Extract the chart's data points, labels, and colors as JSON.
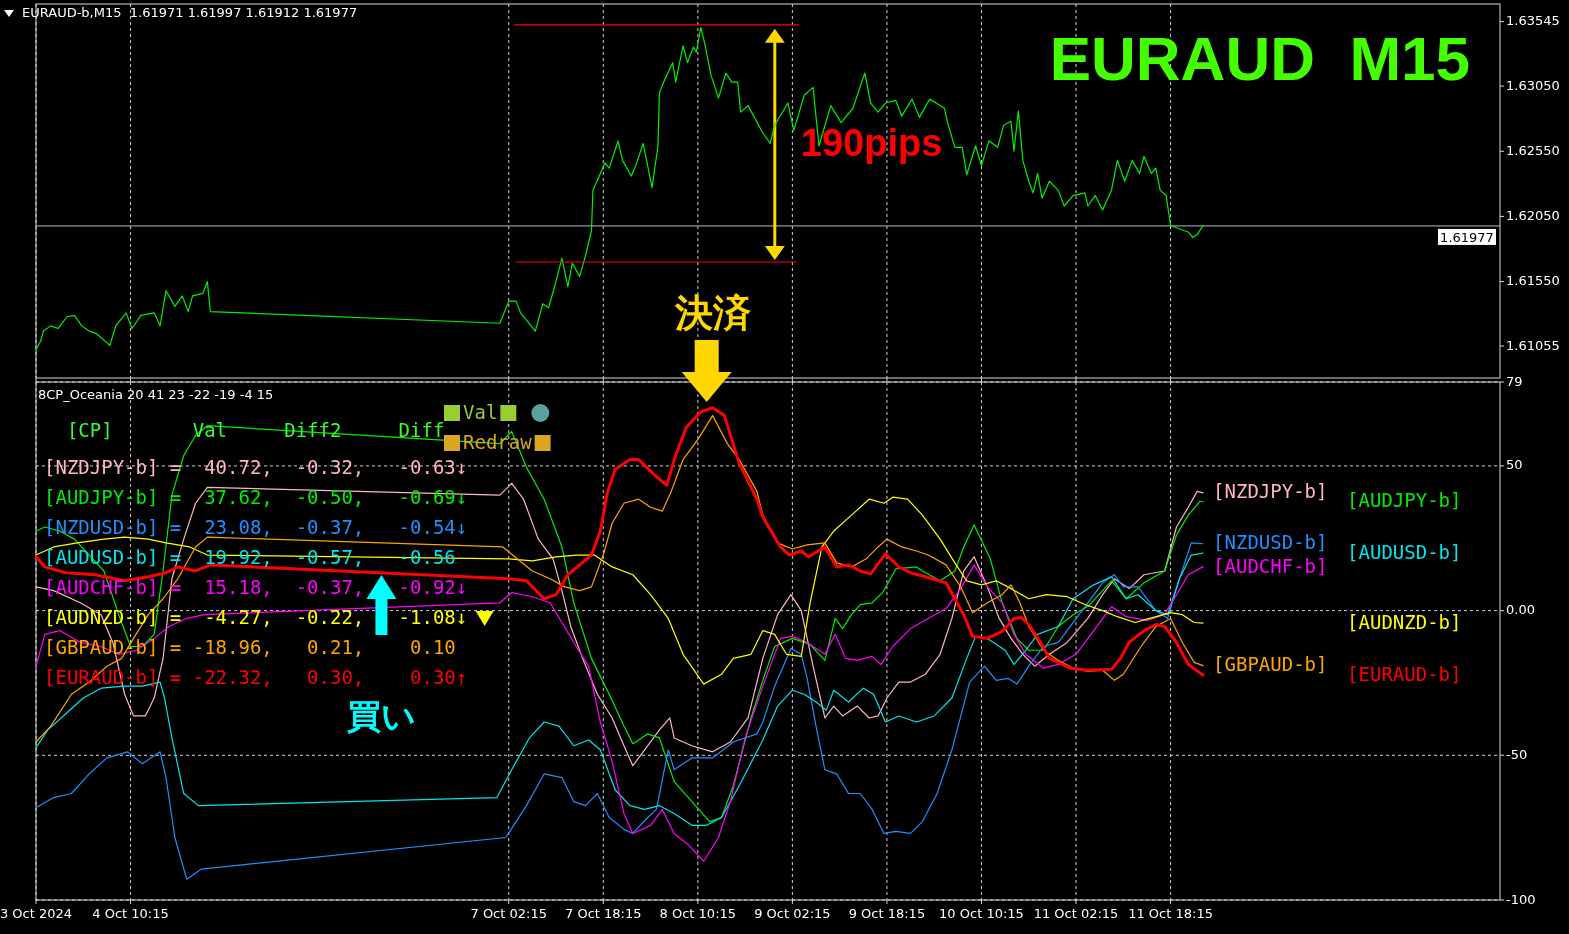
{
  "chart_data": [
    {
      "type": "line",
      "title": "EURAUD  M15",
      "subtitle": "EURAUD-b,M15  1.61971 1.61997 1.61912 1.61977",
      "xlim": [
        "2024-10-03T18:15",
        "2024-10-14T02:00"
      ],
      "xticks": [
        {
          "value": "2024-10-03T18:15",
          "label": null
        },
        {
          "value": "2024-10-04T10:15",
          "label": null
        },
        {
          "value": "2024-10-07T02:15",
          "label": null
        },
        {
          "value": "2024-10-07T18:15",
          "label": null
        },
        {
          "value": "2024-10-08T10:15",
          "label": null
        },
        {
          "value": "2024-10-09T02:15",
          "label": null
        },
        {
          "value": "2024-10-09T18:15",
          "label": null
        },
        {
          "value": "2024-10-10T10:15",
          "label": null
        },
        {
          "value": "2024-10-11T02:15",
          "label": null
        },
        {
          "value": "2024-10-11T18:15",
          "label": null
        }
      ],
      "ylim": [
        1.6081,
        1.6368
      ],
      "yticks": [
        1.61055,
        {
          "value": 1.6155,
          "label": "1.61550"
        },
        {
          "value": 1.6205,
          "label": "1.62050"
        },
        {
          "value": 1.6255,
          "label": "1.62550"
        },
        {
          "value": 1.6305,
          "label": "1.63050"
        },
        1.63545
      ],
      "tick_labels": "y",
      "grid": "x",
      "line_style": "solid",
      "ref_lines": [
        {
          "axis": "y",
          "value": 1.61977,
          "label": "1.61977",
          "color": "#b0b8c8"
        }
      ],
      "annotations": [
        "190pips"
      ],
      "series": [
        {
          "color": "#00ee00",
          "x": [
            "2024-10-03T18:15",
            "2024-10-03T19:00",
            "2024-10-03T19:30",
            "2024-10-03T20:45",
            "2024-10-03T22:00",
            "2024-10-03T23:30",
            "2024-10-04T00:45",
            "2024-10-04T02:00",
            "2024-10-04T03:15",
            "2024-10-04T04:30",
            "2024-10-04T06:45",
            "2024-10-04T07:45",
            "2024-10-04T09:30",
            "2024-10-04T10:30",
            "2024-10-04T12:00",
            "2024-10-04T14:15",
            "2024-10-04T15:15",
            "2024-10-04T16:15",
            "2024-10-04T17:45",
            "2024-10-04T19:00",
            "2024-10-04T20:00",
            "2024-10-04T20:45",
            "2024-10-04T22:30",
            "2024-10-04T23:15",
            "2024-10-04T23:45",
            "2024-10-07T00:45",
            "2024-10-07T02:15",
            "2024-10-07T03:30",
            "2024-10-07T04:15",
            "2024-10-07T06:45",
            "2024-10-07T08:00",
            "2024-10-07T09:00",
            "2024-10-07T10:00",
            "2024-10-07T11:15",
            "2024-10-07T12:15",
            "2024-10-07T13:00",
            "2024-10-07T14:15",
            "2024-10-07T15:15",
            "2024-10-07T16:15",
            "2024-10-07T16:30",
            "2024-10-07T17:45",
            "2024-10-07T18:30",
            "2024-10-07T19:15",
            "2024-10-07T20:45",
            "2024-10-07T21:30",
            "2024-10-07T23:00",
            "2024-10-07T23:45",
            "2024-10-08T01:00",
            "2024-10-08T02:30",
            "2024-10-08T03:30",
            "2024-10-08T03:45",
            "2024-10-08T04:45",
            "2024-10-08T06:00",
            "2024-10-08T06:30",
            "2024-10-08T07:45",
            "2024-10-08T08:30",
            "2024-10-08T09:30",
            "2024-10-08T10:00",
            "2024-10-08T10:45",
            "2024-10-08T11:30",
            "2024-10-08T12:30",
            "2024-10-08T13:45",
            "2024-10-08T15:00",
            "2024-10-08T16:00",
            "2024-10-08T17:00",
            "2024-10-08T17:30",
            "2024-10-08T18:45",
            "2024-10-08T21:15",
            "2024-10-08T22:30",
            "2024-10-08T23:15",
            "2024-10-09T01:30",
            "2024-10-09T02:30",
            "2024-10-09T04:15",
            "2024-10-09T05:45",
            "2024-10-09T06:45",
            "2024-10-09T08:45",
            "2024-10-09T10:30",
            "2024-10-09T12:30",
            "2024-10-09T14:30",
            "2024-10-09T15:30",
            "2024-10-09T16:45",
            "2024-10-09T18:00",
            "2024-10-09T19:45",
            "2024-10-09T20:45",
            "2024-10-09T22:30",
            "2024-10-09T23:45",
            "2024-10-10T01:30",
            "2024-10-10T04:00",
            "2024-10-10T04:30",
            "2024-10-10T05:45",
            "2024-10-10T07:00",
            "2024-10-10T07:45",
            "2024-10-10T09:15",
            "2024-10-10T10:15",
            "2024-10-10T11:30",
            "2024-10-10T13:00",
            "2024-10-10T14:00",
            "2024-10-10T15:15",
            "2024-10-10T15:45",
            "2024-10-10T16:30",
            "2024-10-10T17:15",
            "2024-10-10T18:15",
            "2024-10-10T19:00",
            "2024-10-10T19:45",
            "2024-10-10T20:30",
            "2024-10-10T21:45",
            "2024-10-10T23:15",
            "2024-10-11T00:15",
            "2024-10-11T01:45",
            "2024-10-11T03:45",
            "2024-10-11T04:15",
            "2024-10-11T05:30",
            "2024-10-11T06:45",
            "2024-10-11T08:15",
            "2024-10-11T09:15",
            "2024-10-11T10:30",
            "2024-10-11T11:45",
            "2024-10-11T13:00",
            "2024-10-11T13:45",
            "2024-10-11T15:00",
            "2024-10-11T15:45",
            "2024-10-11T16:30",
            "2024-10-11T17:30",
            "2024-10-11T18:15",
            "2024-10-11T20:00",
            "2024-10-11T21:15",
            "2024-10-11T22:00",
            "2024-10-11T22:45",
            "2024-10-11T23:45"
          ],
          "values": [
            1.6103,
            1.6109,
            1.6117,
            1.6121,
            1.6119,
            1.6128,
            1.6129,
            1.6121,
            1.6117,
            1.6115,
            1.6106,
            1.6121,
            1.6131,
            1.6119,
            1.6129,
            1.6131,
            1.6121,
            1.6148,
            1.6136,
            1.6144,
            1.6132,
            1.6144,
            1.6146,
            1.6155,
            1.6132,
            1.6123,
            1.614,
            1.614,
            1.6131,
            1.6117,
            1.6138,
            1.6135,
            1.6151,
            1.6173,
            1.6151,
            1.6169,
            1.6159,
            1.6175,
            1.6194,
            1.6225,
            1.6238,
            1.6246,
            1.6242,
            1.6263,
            1.6248,
            1.6236,
            1.6244,
            1.6261,
            1.6227,
            1.6259,
            1.63,
            1.6311,
            1.6323,
            1.6308,
            1.6336,
            1.6323,
            1.6335,
            1.6331,
            1.635,
            1.6336,
            1.6313,
            1.6296,
            1.6315,
            1.6308,
            1.6308,
            1.6285,
            1.629,
            1.6269,
            1.6261,
            1.6275,
            1.6292,
            1.6271,
            1.6298,
            1.6304,
            1.6259,
            1.629,
            1.6277,
            1.6288,
            1.6315,
            1.6292,
            1.6285,
            1.6292,
            1.6294,
            1.6282,
            1.6295,
            1.6281,
            1.6295,
            1.6288,
            1.6277,
            1.6258,
            1.6258,
            1.6237,
            1.6259,
            1.6244,
            1.6263,
            1.6258,
            1.6275,
            1.6278,
            1.6255,
            1.6286,
            1.6248,
            1.6232,
            1.6223,
            1.6238,
            1.6219,
            1.6232,
            1.6225,
            1.6213,
            1.6221,
            1.6223,
            1.6213,
            1.6221,
            1.621,
            1.6225,
            1.6248,
            1.6232,
            1.6248,
            1.6238,
            1.6251,
            1.6238,
            1.6242,
            1.6225,
            1.6221,
            1.6198,
            1.6195,
            1.6193,
            1.6189,
            1.6191,
            1.6198
          ]
        },
        {
          "color": "#ff0000",
          "x": [
            "2024-10-07T03:15",
            "2024-10-09T03:15"
          ],
          "values": [
            1.6352,
            1.6352
          ]
        },
        {
          "color": "#ff0000",
          "x": [
            "2024-10-07T03:30",
            "2024-10-09T03:00"
          ],
          "values": [
            1.617,
            1.617
          ]
        }
      ]
    },
    {
      "type": "line",
      "title": "8CP_Oceania 20 41 23 -22 -19 -4 15",
      "xlim": [
        "2024-10-03T18:15",
        "2024-10-14T02:00"
      ],
      "xticks": [
        {
          "value": "2024-10-03T18:15",
          "label": "3 Oct 2024"
        },
        {
          "value": "2024-10-04T10:15",
          "label": "4 Oct 10:15"
        },
        {
          "value": "2024-10-07T02:15",
          "label": "7 Oct 02:15"
        },
        {
          "value": "2024-10-07T18:15",
          "label": "7 Oct 18:15"
        },
        {
          "value": "2024-10-08T10:15",
          "label": "8 Oct 10:15"
        },
        {
          "value": "2024-10-09T02:15",
          "label": "9 Oct 02:15"
        },
        {
          "value": "2024-10-09T18:15",
          "label": "9 Oct 18:15"
        },
        {
          "value": "2024-10-10T10:15",
          "label": "10 Oct 10:15"
        },
        {
          "value": "2024-10-11T02:15",
          "label": "11 Oct 02:15"
        },
        {
          "value": "2024-10-11T18:15",
          "label": "11 Oct 18:15"
        }
      ],
      "ylim": [
        -100,
        79
      ],
      "yticks": [
        79,
        50,
        {
          "value": 0,
          "label": "0.00"
        },
        -50,
        -100
      ],
      "grid": true,
      "line_style": "solid",
      "annotations": [
        "  [CP]       Val     Diff2     Diff",
        "[NZDJPY-b] =  40.72,  -0.32,   -0.63↓",
        "[AUDJPY-b] =  37.62,  -0.50,   -0.69↓",
        "[NZDUSD-b] =  23.08,  -0.37,   -0.54↓",
        "[AUDUSD-b] =  19.92,  -0.57,   -0.56",
        "[AUDCHF-b] =  15.18,  -0.37,   -0.92↓",
        "[AUDNZD-b] =  -4.27,  -0.22,   -1.08↓",
        "[GBPAUD-b] = -18.96,   0.21,    0.10",
        "[EURAUD-b] = -22.32,   0.30,    0.30↑",
        "Val",
        "Redraw",
        "買い",
        {
          "text": "決済",
          "x": "2024-10-08T11:45",
          "y": 70
        }
      ],
      "series": [
        {
          "name": "[NZDJPY-b]",
          "color": "#ffb6c1",
          "x": [
            "2024-10-03T18:15",
            "2024-10-03T21:15",
            "2024-10-04T01:45",
            "2024-10-04T05:15",
            "2024-10-04T07:15",
            "2024-10-04T09:15",
            "2024-10-04T10:45",
            "2024-10-04T12:45",
            "2024-10-04T14:15",
            "2024-10-04T15:45",
            "2024-10-04T17:15",
            "2024-10-04T19:15",
            "2024-10-04T21:15",
            "2024-10-04T23:15",
            "2024-10-07T00:45",
            "2024-10-07T02:45",
            "2024-10-07T04:45",
            "2024-10-07T07:15",
            "2024-10-07T09:45",
            "2024-10-07T11:15",
            "2024-10-07T12:45",
            "2024-10-07T14:45",
            "2024-10-07T17:15",
            "2024-10-07T19:45",
            "2024-10-07T21:45",
            "2024-10-07T23:15",
            "2024-10-08T01:15",
            "2024-10-08T03:45",
            "2024-10-08T05:30",
            "2024-10-08T06:15",
            "2024-10-08T09:15",
            "2024-10-08T12:45",
            "2024-10-08T15:45",
            "2024-10-08T18:45",
            "2024-10-08T21:15",
            "2024-10-08T23:45",
            "2024-10-09T02:00",
            "2024-10-09T03:45",
            "2024-10-09T05:45",
            "2024-10-09T07:45",
            "2024-10-09T09:15",
            "2024-10-09T10:45",
            "2024-10-09T13:15",
            "2024-10-09T15:15",
            "2024-10-09T16:45",
            "2024-10-09T18:15",
            "2024-10-09T20:15",
            "2024-10-09T22:15",
            "2024-10-10T00:45",
            "2024-10-10T03:15",
            "2024-10-10T05:15",
            "2024-10-10T07:15",
            "2024-10-10T09:00",
            "2024-10-10T11:15",
            "2024-10-10T13:15",
            "2024-10-10T15:15",
            "2024-10-10T17:15",
            "2024-10-10T19:15",
            "2024-10-10T21:45",
            "2024-10-11T00:45",
            "2024-10-11T04:15",
            "2024-10-11T06:45",
            "2024-10-11T08:45",
            "2024-10-11T11:15",
            "2024-10-11T13:45",
            "2024-10-11T17:15",
            "2024-10-11T19:15",
            "2024-10-11T21:15",
            "2024-10-11T22:45",
            "2024-10-11T23:45"
          ],
          "values": [
            8.2,
            6.9,
            2.7,
            -1.4,
            -11.0,
            -28.9,
            -36.4,
            -36.4,
            -30.2,
            -16.5,
            11.0,
            24.7,
            37.1,
            42.6,
            39.9,
            44.0,
            38.5,
            24.7,
            17.9,
            6.9,
            -5.5,
            -16.5,
            -28.9,
            -37.1,
            -46.7,
            -53.6,
            -48.1,
            -41.2,
            -37.1,
            -44.0,
            -46.7,
            -48.8,
            -45.4,
            -37.1,
            -16.5,
            -1.4,
            5.5,
            0.0,
            -19.2,
            -37.1,
            -33.0,
            -36.4,
            -33.0,
            -37.1,
            -36.4,
            -30.2,
            -24.7,
            -24.7,
            -22.0,
            -15.1,
            -2.7,
            13.7,
            18.6,
            8.2,
            -2.7,
            -9.6,
            -15.1,
            -19.2,
            -15.1,
            -11.0,
            -2.7,
            5.5,
            11.0,
            7.6,
            12.4,
            13.7,
            28.9,
            35.7,
            41.2,
            40.7
          ]
        },
        {
          "name": "[AUDJPY-b]",
          "color": "#00ee00",
          "x": [
            "2024-10-03T18:15",
            "2024-10-03T19:45",
            "2024-10-03T22:15",
            "2024-10-04T00:45",
            "2024-10-04T03:15",
            "2024-10-04T05:45",
            "2024-10-04T08:15",
            "2024-10-04T10:15",
            "2024-10-04T12:15",
            "2024-10-04T14:15",
            "2024-10-04T15:45",
            "2024-10-04T17:15",
            "2024-10-04T19:15",
            "2024-10-04T21:15",
            "2024-10-04T23:15",
            "2024-10-07T00:45",
            "2024-10-07T02:45",
            "2024-10-07T05:15",
            "2024-10-07T08:15",
            "2024-10-07T11:15",
            "2024-10-07T13:15",
            "2024-10-07T16:15",
            "2024-10-07T19:15",
            "2024-10-07T21:45",
            "2024-10-07T23:15",
            "2024-10-08T01:45",
            "2024-10-08T03:45",
            "2024-10-08T06:15",
            "2024-10-08T09:15",
            "2024-10-08T12:15",
            "2024-10-08T14:15",
            "2024-10-08T16:15",
            "2024-10-08T19:15",
            "2024-10-08T21:15",
            "2024-10-08T23:15",
            "2024-10-09T02:15",
            "2024-10-09T05:15",
            "2024-10-09T07:45",
            "2024-10-09T09:30",
            "2024-10-09T10:45",
            "2024-10-09T12:15",
            "2024-10-09T13:45",
            "2024-10-09T15:45",
            "2024-10-09T17:30",
            "2024-10-09T19:45",
            "2024-10-09T23:15",
            "2024-10-10T00:15",
            "2024-10-10T03:15",
            "2024-10-10T05:45",
            "2024-10-10T07:15",
            "2024-10-10T09:00",
            "2024-10-10T11:45",
            "2024-10-10T13:45",
            "2024-10-10T16:15",
            "2024-10-10T18:15",
            "2024-10-10T20:45",
            "2024-10-10T23:15",
            "2024-10-11T01:45",
            "2024-10-11T04:15",
            "2024-10-11T06:45",
            "2024-10-11T08:15",
            "2024-10-11T10:45",
            "2024-10-11T13:45",
            "2024-10-11T17:15",
            "2024-10-11T19:15",
            "2024-10-11T21:15",
            "2024-10-11T23:15",
            "2024-10-11T23:45"
          ],
          "values": [
            27.5,
            28.9,
            27.5,
            24.7,
            19.2,
            13.7,
            -1.4,
            -12.4,
            -12.4,
            -8.2,
            13.7,
            39.9,
            53.6,
            60.5,
            63.9,
            57.7,
            61.9,
            49.5,
            38.5,
            22.0,
            2.7,
            -16.5,
            -28.9,
            -39.9,
            -46.0,
            -42.6,
            -44.0,
            -59.1,
            -66.0,
            -72.9,
            -71.5,
            -60.5,
            -37.1,
            -24.1,
            -12.4,
            -9.6,
            -11.7,
            -17.2,
            -2.7,
            -6.2,
            -1.4,
            2.1,
            2.7,
            6.2,
            14.4,
            15.1,
            13.7,
            10.3,
            13.7,
            22.0,
            29.6,
            17.9,
            2.7,
            -9.6,
            -13.7,
            -13.7,
            -5.5,
            -1.4,
            1.4,
            6.9,
            10.3,
            4.1,
            9.6,
            13.7,
            26.1,
            33.0,
            37.8,
            37.6
          ]
        },
        {
          "name": "[NZDUSD-b]",
          "color": "#1e90ff",
          "x": [
            "2024-10-03T18:15",
            "2024-10-03T21:15",
            "2024-10-04T00:15",
            "2024-10-04T03:15",
            "2024-10-04T06:15",
            "2024-10-04T09:45",
            "2024-10-04T12:15",
            "2024-10-04T15:15",
            "2024-10-04T16:15",
            "2024-10-04T17:45",
            "2024-10-04T19:45",
            "2024-10-04T22:15",
            "2024-10-07T01:45",
            "2024-10-07T05:15",
            "2024-10-07T08:15",
            "2024-10-07T11:15",
            "2024-10-07T13:15",
            "2024-10-07T15:15",
            "2024-10-07T17:15",
            "2024-10-07T19:15",
            "2024-10-07T21:45",
            "2024-10-07T23:15",
            "2024-10-08T01:45",
            "2024-10-08T03:15",
            "2024-10-08T05:15",
            "2024-10-08T06:15",
            "2024-10-08T09:15",
            "2024-10-08T12:45",
            "2024-10-08T16:15",
            "2024-10-08T20:15",
            "2024-10-08T21:15",
            "2024-10-08T23:15",
            "2024-10-09T02:00",
            "2024-10-09T03:45",
            "2024-10-09T04:45",
            "2024-10-09T06:15",
            "2024-10-09T07:45",
            "2024-10-09T09:45",
            "2024-10-09T11:45",
            "2024-10-09T13:45",
            "2024-10-09T15:45",
            "2024-10-09T17:45",
            "2024-10-09T19:45",
            "2024-10-09T22:15",
            "2024-10-10T00:15",
            "2024-10-10T02:45",
            "2024-10-10T05:15",
            "2024-10-10T08:15",
            "2024-10-10T10:45",
            "2024-10-10T12:45",
            "2024-10-10T14:45",
            "2024-10-10T16:15",
            "2024-10-10T18:15",
            "2024-10-10T20:45",
            "2024-10-10T23:15",
            "2024-10-11T01:15",
            "2024-10-11T04:15",
            "2024-10-11T06:45",
            "2024-10-11T08:45",
            "2024-10-11T10:15",
            "2024-10-11T12:45",
            "2024-10-11T15:45",
            "2024-10-11T17:45",
            "2024-10-11T19:45",
            "2024-10-11T21:45",
            "2024-10-11T23:45"
          ],
          "values": [
            -68.0,
            -64.6,
            -63.2,
            -56.4,
            -50.9,
            -48.8,
            -52.9,
            -48.8,
            -57.7,
            -78.4,
            -92.8,
            -89.3,
            -78.4,
            -67.4,
            -56.4,
            -57.7,
            -66.0,
            -67.4,
            -63.2,
            -71.5,
            -75.6,
            -77.0,
            -71.5,
            -68.7,
            -48.1,
            -55.0,
            -50.9,
            -50.9,
            -45.4,
            -42.6,
            -38.5,
            -26.1,
            -13.1,
            -15.1,
            -23.4,
            -39.9,
            -55.0,
            -56.4,
            -63.2,
            -63.2,
            -68.7,
            -77.0,
            -76.3,
            -77.0,
            -72.9,
            -63.2,
            -48.1,
            -24.7,
            -19.2,
            -24.1,
            -23.4,
            -25.4,
            -19.2,
            -12.4,
            -11.0,
            -5.5,
            2.7,
            9.6,
            12.4,
            8.2,
            8.2,
            0.0,
            -2.7,
            11.0,
            23.4,
            23.1
          ]
        },
        {
          "name": "[AUDUSD-b]",
          "color": "#00e5ee",
          "x": [
            "2024-10-03T18:15",
            "2024-10-03T20:15",
            "2024-10-03T23:15",
            "2024-10-04T02:15",
            "2024-10-04T05:15",
            "2024-10-04T09:15",
            "2024-10-04T12:15",
            "2024-10-04T15:15",
            "2024-10-04T16:00",
            "2024-10-04T17:15",
            "2024-10-04T19:15",
            "2024-10-04T21:45",
            "2024-10-07T00:15",
            "2024-10-07T02:45",
            "2024-10-07T05:45",
            "2024-10-07T08:15",
            "2024-10-07T10:45",
            "2024-10-07T13:15",
            "2024-10-07T15:45",
            "2024-10-07T17:45",
            "2024-10-07T20:15",
            "2024-10-07T22:45",
            "2024-10-08T01:15",
            "2024-10-08T03:45",
            "2024-10-08T06:15",
            "2024-10-08T09:15",
            "2024-10-08T11:45",
            "2024-10-08T14:15",
            "2024-10-08T17:15",
            "2024-10-08T21:15",
            "2024-10-08T23:45",
            "2024-10-09T02:15",
            "2024-10-09T04:15",
            "2024-10-09T06:15",
            "2024-10-09T08:00",
            "2024-10-09T09:15",
            "2024-10-09T11:45",
            "2024-10-09T14:15",
            "2024-10-09T16:00",
            "2024-10-09T18:00",
            "2024-10-09T20:15",
            "2024-10-09T23:15",
            "2024-10-10T02:15",
            "2024-10-10T05:15",
            "2024-10-10T07:45",
            "2024-10-10T09:15",
            "2024-10-10T11:15",
            "2024-10-10T14:15",
            "2024-10-10T15:45",
            "2024-10-10T17:45",
            "2024-10-10T19:45",
            "2024-10-10T23:15",
            "2024-10-11T01:45",
            "2024-10-11T05:15",
            "2024-10-11T08:15",
            "2024-10-11T10:45",
            "2024-10-11T12:45",
            "2024-10-11T15:45",
            "2024-10-11T17:45",
            "2024-10-11T19:45",
            "2024-10-11T21:45",
            "2024-10-11T23:45"
          ],
          "values": [
            -47.4,
            -41.2,
            -35.7,
            -30.2,
            -26.8,
            -26.1,
            -26.1,
            -24.7,
            -30.2,
            -44.0,
            -63.2,
            -67.4,
            -64.6,
            -55.0,
            -44.0,
            -38.5,
            -39.9,
            -46.7,
            -44.7,
            -48.1,
            -61.9,
            -67.4,
            -68.7,
            -67.4,
            -70.1,
            -74.2,
            -74.2,
            -71.5,
            -60.5,
            -44.7,
            -33.0,
            -27.5,
            -28.9,
            -31.6,
            -34.4,
            -27.5,
            -31.6,
            -26.8,
            -28.9,
            -38.5,
            -36.4,
            -38.5,
            -36.4,
            -30.2,
            -16.5,
            -8.9,
            -9.6,
            -13.7,
            -18.6,
            -13.7,
            -8.2,
            -5.5,
            4.1,
            8.9,
            11.7,
            4.1,
            5.5,
            0.0,
            -1.4,
            11.0,
            19.2,
            19.9
          ]
        },
        {
          "name": "[AUDCHF-b]",
          "color": "#ff00ff",
          "x": [
            "2024-10-03T18:15",
            "2024-10-03T19:45",
            "2024-10-03T22:15",
            "2024-10-04T01:45",
            "2024-10-04T05:15",
            "2024-10-04T08:15",
            "2024-10-04T11:15",
            "2024-10-04T14:15",
            "2024-10-04T16:45",
            "2024-10-04T19:45",
            "2024-10-04T22:45",
            "2024-10-07T00:45",
            "2024-10-07T02:45",
            "2024-10-07T06:15",
            "2024-10-07T09:15",
            "2024-10-07T11:15",
            "2024-10-07T13:15",
            "2024-10-07T15:45",
            "2024-10-07T17:45",
            "2024-10-07T19:45",
            "2024-10-07T21:45",
            "2024-10-07T23:15",
            "2024-10-08T02:15",
            "2024-10-08T04:15",
            "2024-10-08T06:15",
            "2024-10-08T08:45",
            "2024-10-08T11:15",
            "2024-10-08T13:45",
            "2024-10-08T15:45",
            "2024-10-08T18:15",
            "2024-10-08T21:15",
            "2024-10-09T00:15",
            "2024-10-09T02:15",
            "2024-10-09T04:45",
            "2024-10-09T07:45",
            "2024-10-09T09:30",
            "2024-10-09T11:15",
            "2024-10-09T13:15",
            "2024-10-09T15:45",
            "2024-10-09T17:15",
            "2024-10-09T19:15",
            "2024-10-09T22:15",
            "2024-10-10T01:15",
            "2024-10-10T04:15",
            "2024-10-10T06:45",
            "2024-10-10T09:00",
            "2024-10-10T11:15",
            "2024-10-10T13:45",
            "2024-10-10T15:45",
            "2024-10-10T17:45",
            "2024-10-10T20:45",
            "2024-10-10T23:15",
            "2024-10-11T02:15",
            "2024-10-11T05:15",
            "2024-10-11T08:15",
            "2024-10-11T10:45",
            "2024-10-11T14:15",
            "2024-10-11T17:15",
            "2024-10-11T19:15",
            "2024-10-11T21:15",
            "2024-10-11T23:45"
          ],
          "values": [
            -19.2,
            -8.2,
            -6.9,
            -11.0,
            -12.4,
            -15.1,
            -13.7,
            -9.6,
            -5.5,
            -2.7,
            -1.4,
            2.7,
            6.2,
            4.8,
            2.7,
            -4.1,
            -11.0,
            -19.2,
            -38.5,
            -52.2,
            -70.1,
            -77.0,
            -74.2,
            -68.7,
            -77.0,
            -81.1,
            -86.6,
            -78.4,
            -66.0,
            -44.0,
            -26.1,
            -9.6,
            -8.9,
            -11.0,
            -15.1,
            -8.2,
            -16.5,
            -17.2,
            -15.8,
            -18.6,
            -12.4,
            -6.2,
            -2.7,
            0.7,
            7.6,
            15.8,
            8.2,
            2.7,
            -8.2,
            -15.1,
            -19.9,
            -18.6,
            -15.1,
            -6.9,
            1.4,
            -2.1,
            -3.4,
            -1.4,
            5.5,
            12.4,
            15.2
          ]
        },
        {
          "name": "[AUDNZD-b]",
          "color": "#ffff00",
          "x": [
            "2024-10-03T18:15",
            "2024-10-03T21:15",
            "2024-10-04T01:15",
            "2024-10-04T05:45",
            "2024-10-04T09:15",
            "2024-10-04T13:15",
            "2024-10-04T16:15",
            "2024-10-04T20:15",
            "2024-10-04T23:15",
            "2024-10-07T02:15",
            "2024-10-07T06:15",
            "2024-10-07T10:15",
            "2024-10-07T13:45",
            "2024-10-07T16:45",
            "2024-10-07T19:45",
            "2024-10-07T23:15",
            "2024-10-08T02:15",
            "2024-10-08T05:15",
            "2024-10-08T07:45",
            "2024-10-08T11:15",
            "2024-10-08T14:15",
            "2024-10-08T16:15",
            "2024-10-08T19:15",
            "2024-10-08T21:15",
            "2024-10-08T23:15",
            "2024-10-09T01:15",
            "2024-10-09T03:45",
            "2024-10-09T05:15",
            "2024-10-09T07:15",
            "2024-10-09T09:15",
            "2024-10-09T12:15",
            "2024-10-09T15:15",
            "2024-10-09T17:45",
            "2024-10-09T19:15",
            "2024-10-09T21:45",
            "2024-10-10T00:15",
            "2024-10-10T03:15",
            "2024-10-10T05:45",
            "2024-10-10T07:45",
            "2024-10-10T10:15",
            "2024-10-10T12:45",
            "2024-10-10T15:15",
            "2024-10-10T18:15",
            "2024-10-10T21:15",
            "2024-10-11T00:45",
            "2024-10-11T03:45",
            "2024-10-11T06:45",
            "2024-10-11T09:15",
            "2024-10-11T12:15",
            "2024-10-11T14:45",
            "2024-10-11T18:15",
            "2024-10-11T20:15",
            "2024-10-11T22:15",
            "2024-10-11T23:45"
          ],
          "values": [
            19.2,
            22.0,
            23.4,
            24.7,
            25.4,
            24.7,
            23.4,
            22.0,
            19.2,
            17.9,
            17.2,
            18.6,
            19.2,
            19.2,
            15.1,
            12.4,
            5.5,
            -2.7,
            -15.1,
            -25.4,
            -22.0,
            -16.5,
            -15.1,
            -6.9,
            -8.2,
            -15.1,
            -15.8,
            2.7,
            22.0,
            27.5,
            33.0,
            38.5,
            37.1,
            39.2,
            38.5,
            33.0,
            24.7,
            16.5,
            10.3,
            8.9,
            10.3,
            7.6,
            4.1,
            5.5,
            4.8,
            2.1,
            0.0,
            -2.1,
            -4.1,
            -2.7,
            -0.7,
            -1.4,
            -4.1,
            -4.3
          ]
        },
        {
          "name": "[GBPAUD-b]",
          "color": "#ffa500",
          "x": [
            "2024-10-03T18:15",
            "2024-10-03T20:45",
            "2024-10-04T00:15",
            "2024-10-04T03:15",
            "2024-10-04T06:15",
            "2024-10-04T08:45",
            "2024-10-04T10:45",
            "2024-10-04T13:15",
            "2024-10-04T15:45",
            "2024-10-04T18:15",
            "2024-10-04T21:15",
            "2024-10-04T23:15",
            "2024-10-07T01:15",
            "2024-10-07T03:15",
            "2024-10-07T06:15",
            "2024-10-07T09:15",
            "2024-10-07T11:45",
            "2024-10-07T14:15",
            "2024-10-07T16:15",
            "2024-10-07T18:15",
            "2024-10-07T19:45",
            "2024-10-07T21:45",
            "2024-10-08T00:15",
            "2024-10-08T02:15",
            "2024-10-08T04:15",
            "2024-10-08T05:45",
            "2024-10-08T07:45",
            "2024-10-08T10:15",
            "2024-10-08T12:45",
            "2024-10-08T15:15",
            "2024-10-08T17:15",
            "2024-10-08T20:15",
            "2024-10-08T21:15",
            "2024-10-08T23:45",
            "2024-10-09T02:15",
            "2024-10-09T04:45",
            "2024-10-09T07:45",
            "2024-10-09T09:45",
            "2024-10-09T12:15",
            "2024-10-09T14:45",
            "2024-10-09T16:45",
            "2024-10-09T18:15",
            "2024-10-09T20:45",
            "2024-10-09T23:15",
            "2024-10-10T01:15",
            "2024-10-10T04:15",
            "2024-10-10T06:45",
            "2024-10-10T08:45",
            "2024-10-10T11:15",
            "2024-10-10T13:45",
            "2024-10-10T15:15",
            "2024-10-10T16:45",
            "2024-10-10T18:15",
            "2024-10-10T20:45",
            "2024-10-10T23:15",
            "2024-10-11T01:45",
            "2024-10-11T04:15",
            "2024-10-11T06:45",
            "2024-10-11T08:45",
            "2024-10-11T10:15",
            "2024-10-11T13:15",
            "2024-10-11T15:45",
            "2024-10-11T18:15",
            "2024-10-11T20:15",
            "2024-10-11T22:15",
            "2024-10-11T23:45"
          ],
          "values": [
            -45.4,
            -39.9,
            -28.9,
            -24.7,
            -19.2,
            -16.5,
            -9.6,
            -1.4,
            4.1,
            11.0,
            22.0,
            25.4,
            22.0,
            18.6,
            13.7,
            11.0,
            8.2,
            6.9,
            8.2,
            19.2,
            30.2,
            37.1,
            38.5,
            35.7,
            34.4,
            41.2,
            52.2,
            59.1,
            67.4,
            57.7,
            52.2,
            41.2,
            33.0,
            23.4,
            21.3,
            22.7,
            23.4,
            16.5,
            15.1,
            17.9,
            22.0,
            24.7,
            22.0,
            20.6,
            19.2,
            15.8,
            8.2,
            -0.7,
            2.7,
            5.5,
            8.9,
            2.7,
            -5.5,
            -13.7,
            -17.2,
            -19.9,
            -21.0,
            -20.6,
            -24.1,
            -22.0,
            -12.4,
            -5.5,
            -2.7,
            -11.0,
            -17.9,
            -19.0
          ]
        },
        {
          "name": "[EURAUD-b]",
          "color": "#ff0000",
          "x": [
            "2024-10-03T18:15",
            "2024-10-03T19:45",
            "2024-10-03T23:15",
            "2024-10-04T04:15",
            "2024-10-04T09:15",
            "2024-10-04T13:15",
            "2024-10-04T16:15",
            "2024-10-04T18:15",
            "2024-10-04T21:15",
            "2024-10-04T23:45",
            "2024-10-07T02:15",
            "2024-10-07T05:15",
            "2024-10-07T08:15",
            "2024-10-07T10:15",
            "2024-10-07T12:15",
            "2024-10-07T14:15",
            "2024-10-07T16:15",
            "2024-10-07T17:45",
            "2024-10-07T19:00",
            "2024-10-07T20:15",
            "2024-10-07T22:45",
            "2024-10-08T00:15",
            "2024-10-08T02:15",
            "2024-10-08T03:45",
            "2024-10-08T05:00",
            "2024-10-08T06:15",
            "2024-10-08T08:15",
            "2024-10-08T10:45",
            "2024-10-08T12:45",
            "2024-10-08T14:45",
            "2024-10-08T17:15",
            "2024-10-08T20:15",
            "2024-10-08T21:15",
            "2024-10-09T00:15",
            "2024-10-09T01:45",
            "2024-10-09T03:45",
            "2024-10-09T05:00",
            "2024-10-09T07:45",
            "2024-10-09T09:45",
            "2024-10-09T11:45",
            "2024-10-09T13:45",
            "2024-10-09T15:30",
            "2024-10-09T18:00",
            "2024-10-09T20:15",
            "2024-10-09T22:15",
            "2024-10-10T00:45",
            "2024-10-10T04:15",
            "2024-10-10T07:15",
            "2024-10-10T08:45",
            "2024-10-10T11:15",
            "2024-10-10T13:45",
            "2024-10-10T15:45",
            "2024-10-10T17:00",
            "2024-10-10T18:15",
            "2024-10-10T20:15",
            "2024-10-10T21:45",
            "2024-10-10T23:15",
            "2024-10-11T01:15",
            "2024-10-11T04:15",
            "2024-10-11T08:15",
            "2024-10-11T09:45",
            "2024-10-11T11:15",
            "2024-10-11T13:45",
            "2024-10-11T15:45",
            "2024-10-11T17:15",
            "2024-10-11T19:15",
            "2024-10-11T21:15",
            "2024-10-11T23:45"
          ],
          "values": [
            18.6,
            15.1,
            13.1,
            12.4,
            10.3,
            11.7,
            13.1,
            15.1,
            13.7,
            15.8,
            11.0,
            10.3,
            4.1,
            5.5,
            12.4,
            15.8,
            19.2,
            27.5,
            41.2,
            48.8,
            52.2,
            52.2,
            48.1,
            45.4,
            43.3,
            52.2,
            63.2,
            68.7,
            70.1,
            67.4,
            50.9,
            38.5,
            32.3,
            22.0,
            19.2,
            20.6,
            18.6,
            22.0,
            15.1,
            15.8,
            13.7,
            12.7,
            19.6,
            15.1,
            13.1,
            11.7,
            9.6,
            -1.4,
            -8.9,
            -9.6,
            -7.2,
            -2.7,
            -2.4,
            -4.8,
            -11.0,
            -16.5,
            -17.9,
            -19.9,
            -20.6,
            -20.3,
            -16.5,
            -11.0,
            -6.9,
            -4.8,
            -5.5,
            -11.0,
            -18.6,
            -22.3
          ]
        }
      ]
    }
  ]
}
